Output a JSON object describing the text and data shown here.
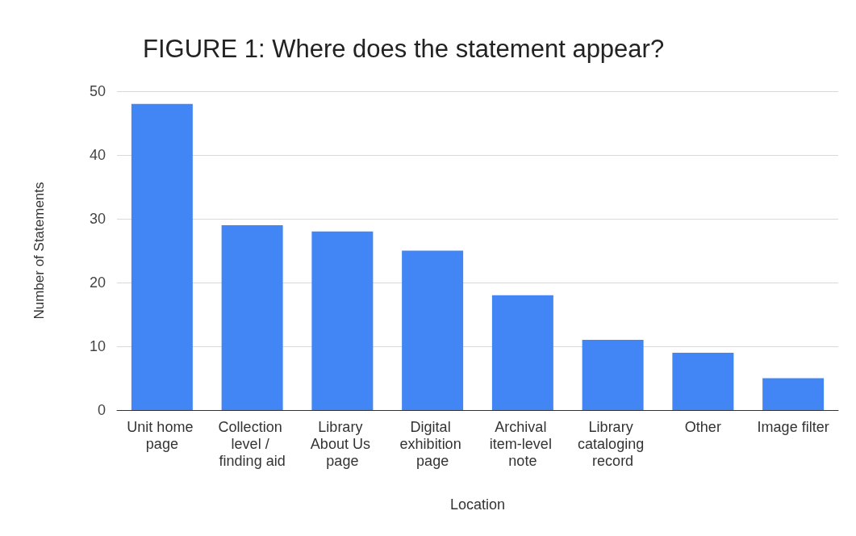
{
  "chart_data": {
    "type": "bar",
    "title": "FIGURE 1: Where does the statement appear?",
    "xlabel": "Location",
    "ylabel": "Number of Statements",
    "categories": [
      "Unit home page",
      "Collection level / finding aid",
      "Library About Us page",
      "Digital exhibition page",
      "Archival item-level note",
      "Library cataloging record",
      "Other",
      "Image filter"
    ],
    "values": [
      48,
      29,
      28,
      25,
      18,
      11,
      9,
      5
    ],
    "color": "#4285f4",
    "ylim": [
      0,
      50
    ],
    "yticks": [
      0,
      10,
      20,
      30,
      40,
      50
    ],
    "grid": "y"
  }
}
